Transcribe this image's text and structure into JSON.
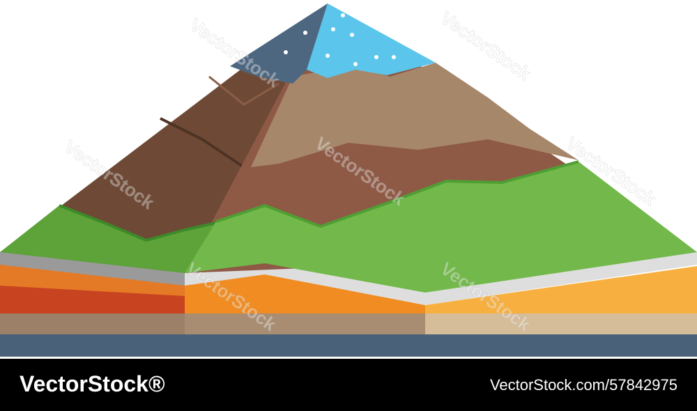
{
  "watermark": "VectorStock",
  "footer": {
    "logo": "VectorStock®",
    "id": "VectorStock.com/57842975"
  }
}
